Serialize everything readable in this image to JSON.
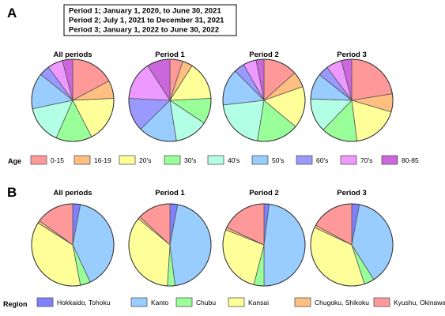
{
  "periods_box": {
    "lines": [
      "Period 1; January 1, 2020, to June 30, 2021",
      "Period 2; July 1, 2021 to December 31, 2021",
      "Period 3; January 1, 2022 to June 30, 2022"
    ]
  },
  "chart_data": [
    {
      "type": "pie",
      "panel_label": "A",
      "legend_title": "Age",
      "categories": [
        "0-15",
        "16-19",
        "20's",
        "30's",
        "40's",
        "50's",
        "60's",
        "70's",
        "80-85"
      ],
      "colors": [
        "#ff9999",
        "#ffbf80",
        "#ffff99",
        "#99ff99",
        "#b3ffe6",
        "#99ccff",
        "#9999ff",
        "#ee99ff",
        "#cc66dd"
      ],
      "pies": [
        {
          "title": "All periods",
          "values": [
            17,
            7,
            18,
            14,
            15,
            14,
            4,
            6,
            4
          ]
        },
        {
          "title": "Period 1",
          "values": [
            5,
            4,
            15,
            10,
            13,
            15,
            13,
            15,
            9
          ]
        },
        {
          "title": "Period 2",
          "values": [
            13,
            6,
            16,
            16,
            20,
            14,
            4,
            5,
            3
          ]
        },
        {
          "title": "Period 3",
          "values": [
            22,
            7,
            18,
            14,
            13,
            10,
            4,
            6,
            4
          ]
        }
      ]
    },
    {
      "type": "pie",
      "panel_label": "B",
      "legend_title": "Region",
      "categories": [
        "Hokkaido, Tohoku",
        "Kanto",
        "Chubu",
        "Kansai",
        "Chugoku, Shikoku",
        "Kyushu, Okinawa"
      ],
      "colors": [
        "#8080ff",
        "#99ccff",
        "#99ff99",
        "#ffff99",
        "#ffbf80",
        "#ff9999"
      ],
      "pies": [
        {
          "title": "All periods",
          "values": [
            3,
            40,
            4,
            37,
            1,
            15
          ]
        },
        {
          "title": "Period 1",
          "values": [
            3,
            45,
            3,
            35,
            1,
            13
          ]
        },
        {
          "title": "Period 2",
          "values": [
            2,
            48,
            4,
            27,
            1,
            18
          ]
        },
        {
          "title": "Period 3",
          "values": [
            3,
            38,
            4,
            37,
            1,
            17
          ]
        }
      ]
    }
  ]
}
